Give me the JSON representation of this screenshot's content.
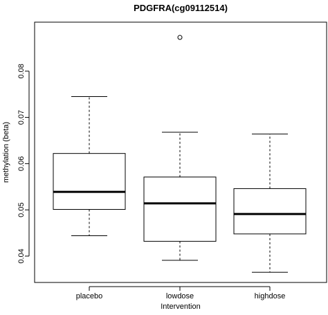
{
  "chart_data": {
    "type": "boxplot",
    "title": "PDGFRA(cg09112514)",
    "xlabel": "Intervention",
    "ylabel": "methylation (beta)",
    "categories": [
      "placebo",
      "lowdose",
      "highdose"
    ],
    "ylim": [
      0.0343,
      0.0906
    ],
    "yticks": [
      0.04,
      0.05,
      0.06,
      0.07,
      0.08
    ],
    "ytick_labels": [
      "0.04",
      "0.05",
      "0.06",
      "0.07",
      "0.08"
    ],
    "boxes": [
      {
        "category": "placebo",
        "whisker_low": 0.0444,
        "q1": 0.0501,
        "median": 0.0539,
        "q3": 0.0622,
        "whisker_high": 0.0745,
        "outliers": []
      },
      {
        "category": "lowdose",
        "whisker_low": 0.0391,
        "q1": 0.0432,
        "median": 0.0514,
        "q3": 0.0571,
        "whisker_high": 0.0668,
        "outliers": [
          0.0873
        ]
      },
      {
        "category": "highdose",
        "whisker_low": 0.0365,
        "q1": 0.0448,
        "median": 0.0491,
        "q3": 0.0546,
        "whisker_high": 0.0664,
        "outliers": []
      }
    ],
    "grid": false,
    "legend": "none"
  }
}
